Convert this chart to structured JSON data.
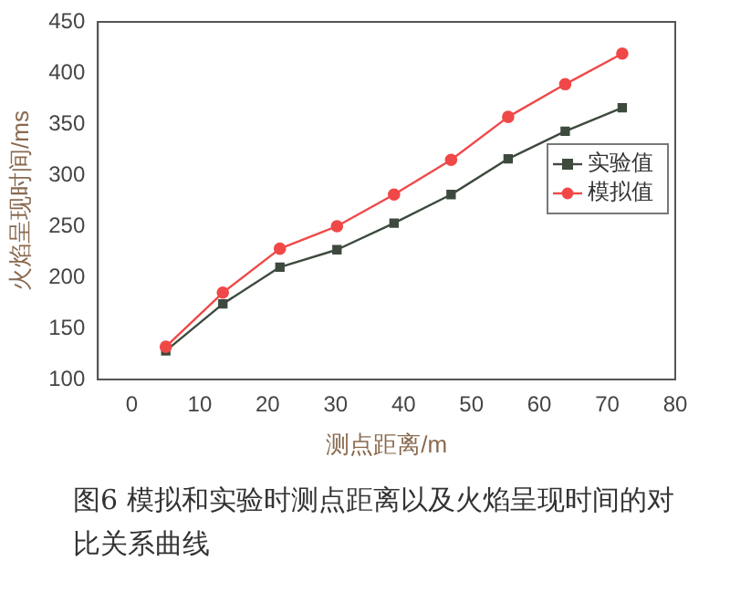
{
  "chart_data": {
    "type": "line",
    "xlabel": "测点距离/m",
    "ylabel": "火焰呈现时间/ms",
    "x": [
      5,
      13.4,
      21.8,
      30.2,
      38.6,
      47,
      55.4,
      63.8,
      72.2
    ],
    "series": [
      {
        "name": "实验值",
        "color": "#3d4a3d",
        "marker": "square",
        "values": [
          128,
          174,
          210,
          227,
          253,
          281,
          316,
          343,
          366
        ]
      },
      {
        "name": "模拟值",
        "color": "#f04848",
        "marker": "circle",
        "values": [
          132,
          185,
          228,
          250,
          281,
          315,
          357,
          389,
          419
        ]
      }
    ],
    "xlim": [
      -5,
      80
    ],
    "xticks": [
      0,
      10,
      20,
      30,
      40,
      50,
      60,
      70,
      80
    ],
    "ylim": [
      100,
      450
    ],
    "yticks": [
      100,
      150,
      200,
      250,
      300,
      350,
      400,
      450
    ],
    "grid": false,
    "legend": "right",
    "annotations": [
      "图6 模拟和实验时测点距离以及火焰呈现时间的对比关系曲线"
    ]
  }
}
